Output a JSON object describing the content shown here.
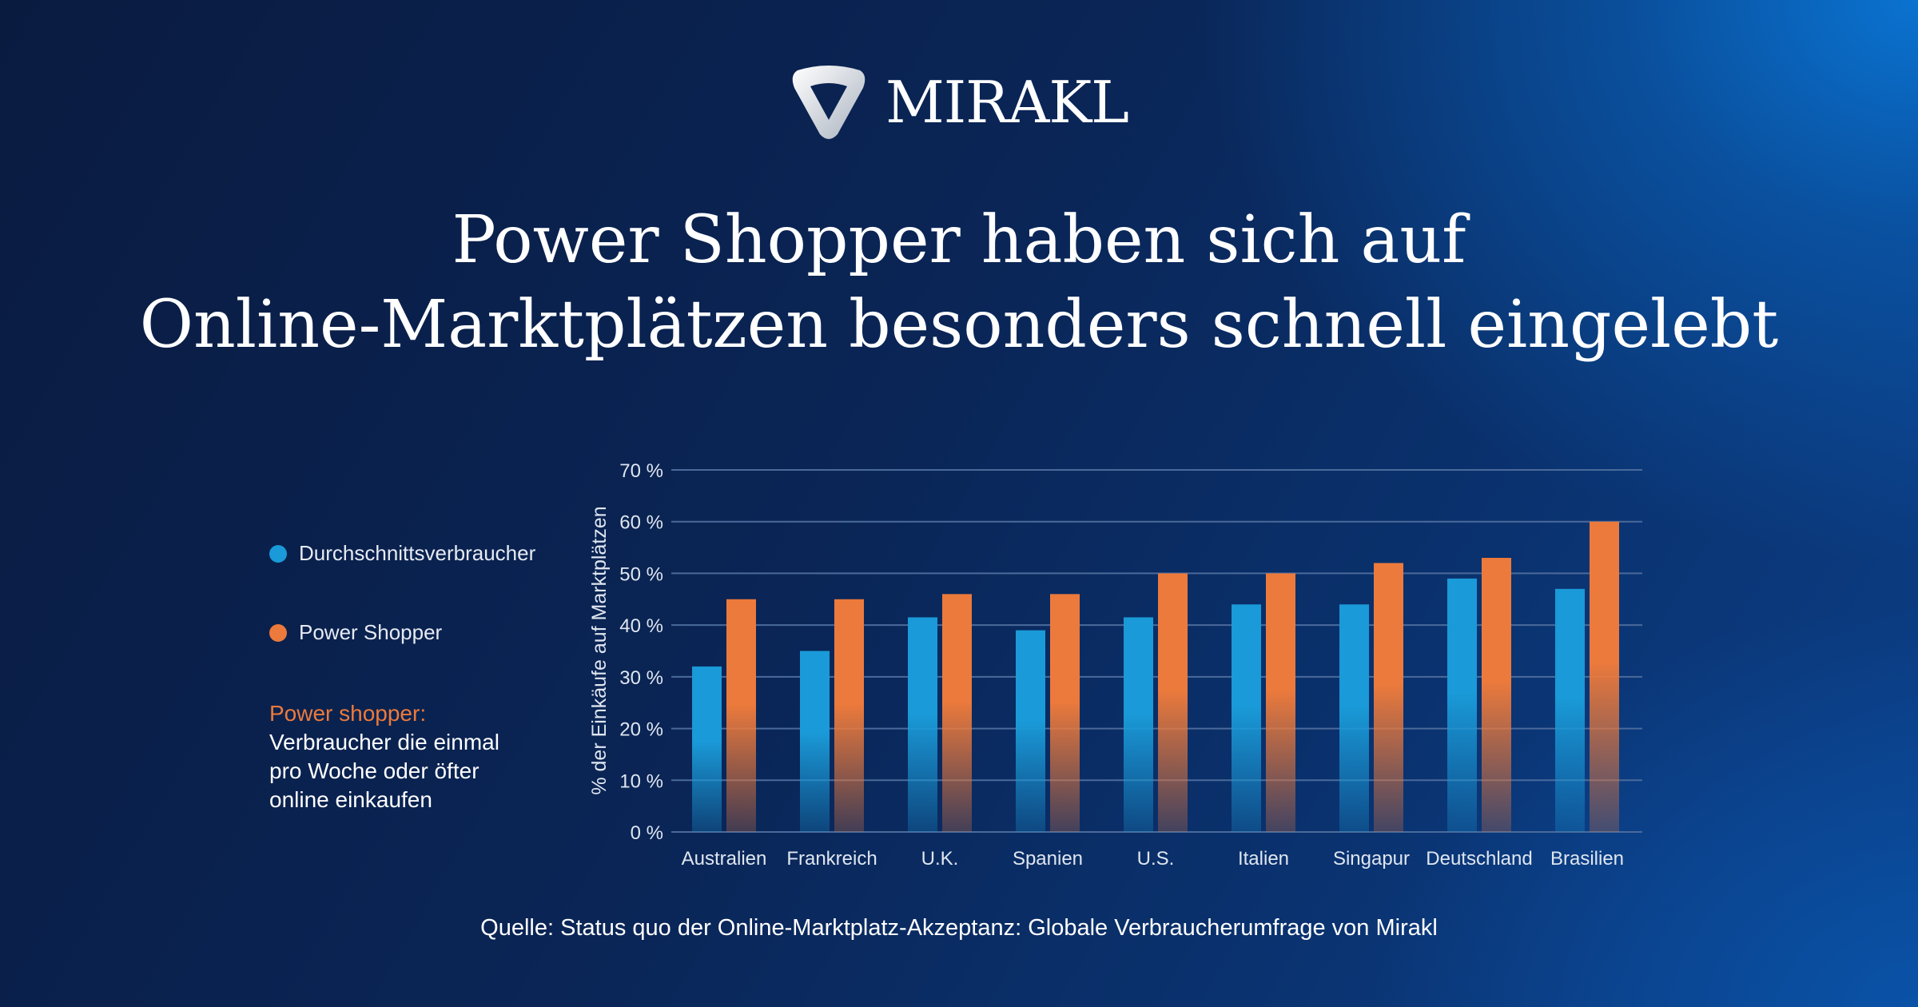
{
  "logo": {
    "text": "MIRAKL",
    "icon": "mirakl-triangle-logo-icon"
  },
  "title": [
    "Power Shopper haben sich auf",
    "Online-Marktplätzen besonders schnell eingelebt"
  ],
  "legend": [
    {
      "label": "Durchschnittsverbraucher",
      "color": "#1a9ad8"
    },
    {
      "label": "Power Shopper",
      "color": "#ec7a3c"
    }
  ],
  "note": {
    "heading": "Power shopper:",
    "lines": [
      "Verbraucher die einmal",
      "pro Woche oder öfter",
      "online einkaufen"
    ]
  },
  "source": "Quelle: Status quo der Online-Marktplatz-Akzeptanz: Globale Verbraucherumfrage von Mirakl",
  "chart_data": {
    "type": "bar",
    "ylabel": "% der Einkäufe auf Marktplätzen",
    "ylim": [
      0,
      70
    ],
    "yticks": [
      "0 %",
      "10 %",
      "20 %",
      "30 %",
      "40 %",
      "50 %",
      "60 %",
      "70 %"
    ],
    "grid": true,
    "legend_placement": "left",
    "categories": [
      "Australien",
      "Frankreich",
      "U.K.",
      "Spanien",
      "U.S.",
      "Italien",
      "Singapur",
      "Deutschland",
      "Brasilien"
    ],
    "series": [
      {
        "name": "Durchschnittsverbraucher",
        "color": "#1a9ad8",
        "values": [
          32,
          35,
          41.5,
          39,
          41.5,
          44,
          44,
          49,
          47
        ]
      },
      {
        "name": "Power Shopper",
        "color": "#ec7a3c",
        "values": [
          45,
          45,
          46,
          46,
          50,
          50,
          52,
          53,
          60
        ]
      }
    ]
  }
}
